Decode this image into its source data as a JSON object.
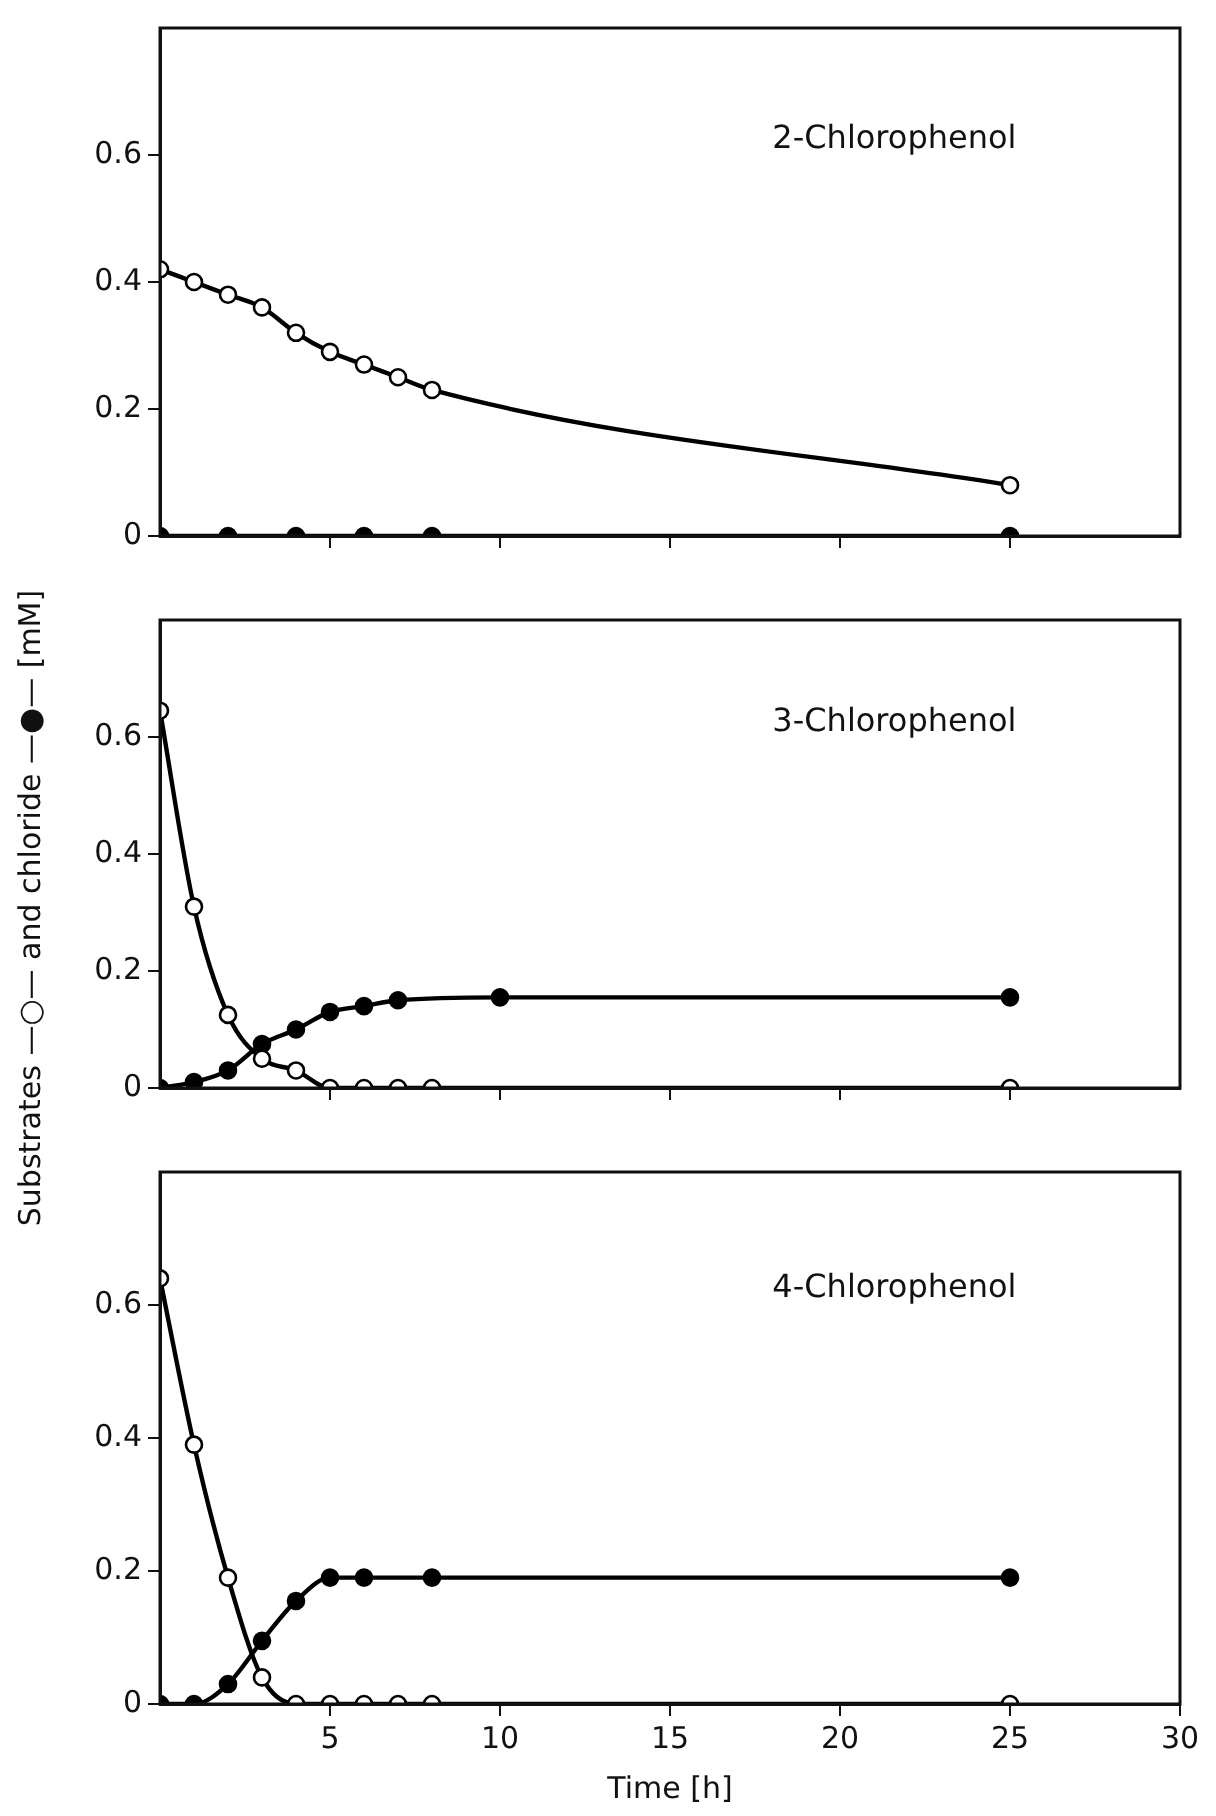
{
  "chart_data": [
    {
      "type": "line",
      "annotations": [
        "2-Chlorophenol"
      ],
      "x": [
        0,
        1,
        2,
        3,
        4,
        5,
        6,
        7,
        8,
        25
      ],
      "xlim": [
        0,
        30
      ],
      "xticks": [
        {
          "value": 5,
          "label": null
        },
        {
          "value": 10,
          "label": null
        },
        {
          "value": 15,
          "label": null
        },
        {
          "value": 20,
          "label": null
        },
        {
          "value": 25,
          "label": null
        }
      ],
      "ylim": [
        0,
        0.8
      ],
      "yticks": [
        0,
        0.2,
        0.4,
        0.6
      ],
      "tick_labels": "y",
      "marker": "circle",
      "line_style": "solid",
      "series": [
        {
          "color": "#000000",
          "values": [
            0.42,
            0.4,
            0.38,
            0.36,
            0.32,
            0.29,
            0.27,
            0.25,
            0.23,
            0.08
          ]
        },
        {
          "color": "#000000",
          "x": [
            0,
            2,
            4,
            6,
            8,
            25
          ],
          "values": [
            0,
            0,
            0,
            0,
            0,
            0
          ]
        }
      ]
    },
    {
      "type": "line",
      "annotations": [
        "3-Chlorophenol"
      ],
      "ylabel": "Substrates —○— and chloride —●— [mM]",
      "x": [
        0,
        1,
        2,
        3,
        4,
        5,
        6,
        7,
        8,
        25
      ],
      "xlim": [
        0,
        30
      ],
      "xticks": [
        {
          "value": 5,
          "label": null
        },
        {
          "value": 10,
          "label": null
        },
        {
          "value": 15,
          "label": null
        },
        {
          "value": 20,
          "label": null
        },
        {
          "value": 25,
          "label": null
        }
      ],
      "ylim": [
        0,
        0.8
      ],
      "yticks": [
        0,
        0.2,
        0.4,
        0.6
      ],
      "tick_labels": "y",
      "marker": "circle",
      "line_style": "solid",
      "series": [
        {
          "color": "#000000",
          "values": [
            0.645,
            0.31,
            0.125,
            0.05,
            0.03,
            0,
            0,
            0,
            0,
            0
          ]
        },
        {
          "color": "#000000",
          "x": [
            0,
            1,
            2,
            3,
            4,
            5,
            6,
            7,
            10,
            25
          ],
          "values": [
            0,
            0.01,
            0.03,
            0.075,
            0.1,
            0.13,
            0.14,
            0.15,
            0.155,
            0.155
          ]
        }
      ]
    },
    {
      "type": "line",
      "annotations": [
        "4-Chlorophenol"
      ],
      "xlabel": "Time [h]",
      "x": [
        0,
        1,
        2,
        3,
        4,
        5,
        6,
        7,
        8,
        25
      ],
      "xlim": [
        0,
        30
      ],
      "xticks": [
        5,
        10,
        15,
        20,
        25,
        30
      ],
      "ylim": [
        0,
        0.8
      ],
      "yticks": [
        0,
        0.2,
        0.4,
        0.6
      ],
      "marker": "circle",
      "line_style": "solid",
      "series": [
        {
          "color": "#000000",
          "values": [
            0.64,
            0.39,
            0.19,
            0.04,
            0,
            0,
            0,
            0,
            0,
            0
          ]
        },
        {
          "color": "#000000",
          "x": [
            0,
            1,
            2,
            3,
            4,
            5,
            6,
            8,
            25
          ],
          "values": [
            0,
            0,
            0.03,
            0.095,
            0.155,
            0.19,
            0.19,
            0.19,
            0.19
          ]
        }
      ]
    }
  ]
}
